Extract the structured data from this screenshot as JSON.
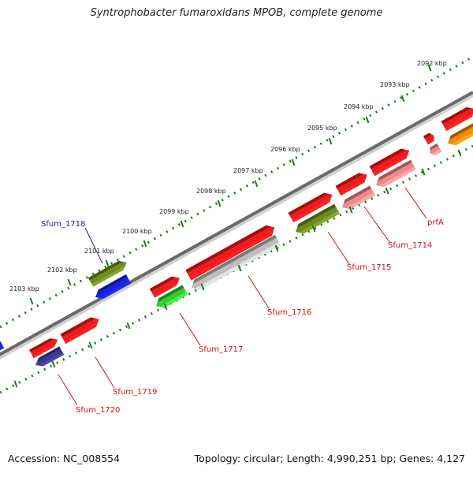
{
  "title": "Syntrophobacter fumaroxidans MPOB, complete genome",
  "footer": {
    "accession": "Accession: NC_008554",
    "summary": "Topology: circular; Length: 4,990,251 bp; Genes: 4,127"
  },
  "ruler": {
    "ticks": [
      {
        "label": "2092 kbp"
      },
      {
        "label": "2093 kbp"
      },
      {
        "label": "2094 kbp"
      },
      {
        "label": "2095 kbp"
      },
      {
        "label": "2096 kbp"
      },
      {
        "label": "2097 kbp"
      },
      {
        "label": "2098 kbp"
      },
      {
        "label": "2099 kbp"
      },
      {
        "label": "2100 kbp"
      },
      {
        "label": "2101 kbp"
      },
      {
        "label": "2102 kbp"
      },
      {
        "label": "2103 kbp"
      }
    ]
  },
  "features": {
    "colors": {
      "cds_red": "#ee1c1c",
      "pink": "#ee8a8a",
      "olive": "#6e8a22",
      "blue": "#1a22e0",
      "navy": "#3c3a8e",
      "green": "#33cc33",
      "gray": "#bdbdbd",
      "orange": "#f08a10"
    },
    "labels": [
      {
        "name": "Sfum_1718",
        "color": "#1a1aa0"
      },
      {
        "name": "prfA",
        "color": "#cc1111"
      },
      {
        "name": "Sfum_1714",
        "color": "#cc1111"
      },
      {
        "name": "Sfum_1715",
        "color": "#cc1111"
      },
      {
        "name": "Sfum_1716",
        "color": "#cc1111"
      },
      {
        "name": "Sfum_1717",
        "color": "#cc1111"
      },
      {
        "name": "Sfum_1719",
        "color": "#cc1111"
      },
      {
        "name": "Sfum_1720",
        "color": "#cc1111"
      }
    ]
  }
}
